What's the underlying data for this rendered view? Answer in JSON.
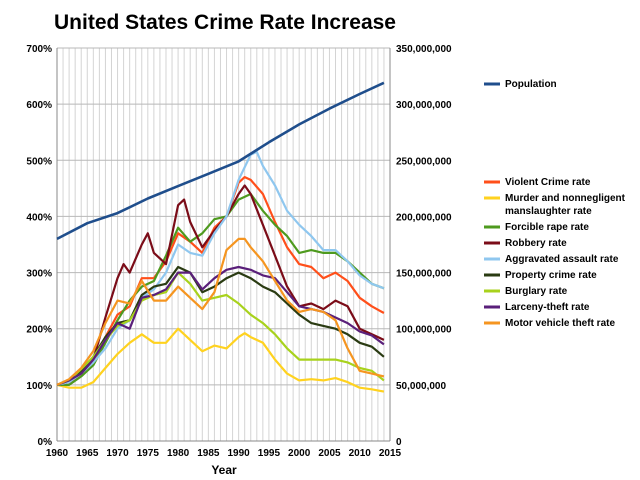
{
  "chart_data": {
    "type": "line",
    "title": "United States Crime Rate Increase",
    "xlabel": "Year",
    "ylabel_left": "",
    "ylabel_right": "",
    "xlim": [
      1960,
      2015
    ],
    "ylim_left": [
      0,
      700
    ],
    "ylim_right": [
      0,
      350000000
    ],
    "grid": true,
    "legend_position": "right",
    "x_ticks": [
      "1960",
      "1965",
      "1970",
      "1975",
      "1980",
      "1985",
      "1990",
      "1995",
      "2000",
      "2005",
      "2010",
      "2015"
    ],
    "y_left_ticks": [
      "0%",
      "100%",
      "200%",
      "300%",
      "400%",
      "500%",
      "600%",
      "700%"
    ],
    "y_right_ticks": [
      "0",
      "50,000,000",
      "100,000,000",
      "150,000,000",
      "200,000,000",
      "250,000,000",
      "300,000,000",
      "350,000,000"
    ],
    "population": {
      "name": "Population",
      "color": "#1f4e8c",
      "axis": "right",
      "x": [
        1960,
        1965,
        1970,
        1975,
        1980,
        1985,
        1990,
        1995,
        2000,
        2005,
        2010,
        2014
      ],
      "values": [
        180000000,
        194000000,
        203000000,
        216000000,
        227000000,
        238000000,
        249000000,
        266000000,
        282000000,
        296000000,
        309000000,
        319000000
      ]
    },
    "series": [
      {
        "name": "Violent Crime rate",
        "color": "#ff4f1a",
        "x": [
          1960,
          1962,
          1964,
          1966,
          1968,
          1970,
          1972,
          1974,
          1976,
          1978,
          1980,
          1982,
          1984,
          1986,
          1988,
          1990,
          1991,
          1992,
          1994,
          1996,
          1998,
          2000,
          2002,
          2004,
          2006,
          2008,
          2010,
          2012,
          2014
        ],
        "values": [
          100,
          105,
          118,
          140,
          185,
          225,
          240,
          290,
          290,
          320,
          370,
          355,
          335,
          380,
          400,
          460,
          470,
          465,
          440,
          390,
          345,
          315,
          310,
          290,
          300,
          285,
          255,
          240,
          228
        ]
      },
      {
        "name": "Murder and nonnegligent manslaughter rate",
        "color": "#ffd21f",
        "x": [
          1960,
          1962,
          1964,
          1966,
          1968,
          1970,
          1972,
          1974,
          1976,
          1978,
          1980,
          1982,
          1984,
          1986,
          1988,
          1990,
          1991,
          1992,
          1994,
          1996,
          1998,
          2000,
          2002,
          2004,
          2006,
          2008,
          2010,
          2012,
          2014
        ],
        "values": [
          100,
          95,
          95,
          105,
          130,
          155,
          175,
          190,
          175,
          175,
          200,
          180,
          160,
          170,
          165,
          185,
          192,
          185,
          175,
          145,
          120,
          108,
          110,
          108,
          112,
          105,
          95,
          92,
          88
        ]
      },
      {
        "name": "Forcible rape rate",
        "color": "#4e9a1e",
        "x": [
          1960,
          1962,
          1964,
          1966,
          1968,
          1970,
          1972,
          1974,
          1976,
          1978,
          1980,
          1982,
          1984,
          1986,
          1988,
          1990,
          1992,
          1994,
          1996,
          1998,
          2000,
          2002,
          2004,
          2006,
          2008,
          2010,
          2012,
          2014
        ],
        "values": [
          100,
          100,
          115,
          135,
          175,
          215,
          250,
          275,
          285,
          330,
          380,
          355,
          370,
          395,
          400,
          430,
          440,
          410,
          385,
          365,
          335,
          340,
          335,
          335,
          320,
          300,
          280,
          272
        ]
      },
      {
        "name": "Robbery rate",
        "color": "#7b0c18",
        "x": [
          1960,
          1962,
          1964,
          1966,
          1968,
          1970,
          1971,
          1972,
          1974,
          1975,
          1976,
          1978,
          1980,
          1981,
          1982,
          1984,
          1986,
          1988,
          1990,
          1991,
          1992,
          1994,
          1996,
          1998,
          2000,
          2002,
          2004,
          2006,
          2008,
          2010,
          2012,
          2014
        ],
        "values": [
          100,
          105,
          120,
          145,
          220,
          290,
          315,
          300,
          350,
          370,
          335,
          315,
          420,
          430,
          390,
          345,
          375,
          400,
          440,
          455,
          440,
          385,
          330,
          275,
          240,
          245,
          235,
          250,
          240,
          200,
          190,
          180
        ]
      },
      {
        "name": "Aggravated assault rate",
        "color": "#8fc7ef",
        "x": [
          1960,
          1962,
          1964,
          1966,
          1968,
          1970,
          1972,
          1974,
          1976,
          1978,
          1980,
          1982,
          1984,
          1986,
          1988,
          1990,
          1992,
          1993,
          1994,
          1996,
          1998,
          2000,
          2002,
          2004,
          2006,
          2008,
          2010,
          2012,
          2014
        ],
        "values": [
          100,
          105,
          120,
          140,
          165,
          200,
          215,
          255,
          270,
          300,
          350,
          335,
          330,
          370,
          400,
          465,
          510,
          515,
          490,
          455,
          410,
          385,
          365,
          340,
          340,
          320,
          295,
          280,
          272
        ]
      },
      {
        "name": "Property crime rate",
        "color": "#2a3b12",
        "x": [
          1960,
          1962,
          1964,
          1966,
          1968,
          1970,
          1972,
          1974,
          1976,
          1978,
          1980,
          1982,
          1984,
          1986,
          1988,
          1990,
          1992,
          1994,
          1996,
          1998,
          2000,
          2002,
          2004,
          2006,
          2008,
          2010,
          2012,
          2014
        ],
        "values": [
          100,
          108,
          125,
          150,
          185,
          210,
          215,
          260,
          275,
          280,
          310,
          300,
          265,
          275,
          290,
          300,
          290,
          275,
          265,
          245,
          225,
          210,
          205,
          200,
          190,
          175,
          168,
          150
        ]
      },
      {
        "name": "Burglary rate",
        "color": "#a8d21c",
        "x": [
          1960,
          1962,
          1964,
          1966,
          1968,
          1970,
          1972,
          1974,
          1976,
          1978,
          1980,
          1982,
          1984,
          1986,
          1988,
          1990,
          1992,
          1994,
          1996,
          1998,
          2000,
          2002,
          2004,
          2006,
          2008,
          2010,
          2012,
          2014
        ],
        "values": [
          100,
          108,
          128,
          150,
          180,
          205,
          215,
          250,
          260,
          265,
          300,
          280,
          250,
          255,
          260,
          245,
          225,
          210,
          190,
          165,
          145,
          145,
          145,
          145,
          140,
          130,
          125,
          108
        ]
      },
      {
        "name": "Larceny-theft rate",
        "color": "#5a1f7a",
        "x": [
          1960,
          1962,
          1964,
          1966,
          1968,
          1970,
          1972,
          1974,
          1976,
          1978,
          1980,
          1982,
          1984,
          1986,
          1988,
          1990,
          1992,
          1994,
          1996,
          1998,
          2000,
          2002,
          2004,
          2006,
          2008,
          2010,
          2012,
          2014
        ],
        "values": [
          100,
          108,
          120,
          145,
          180,
          210,
          200,
          255,
          260,
          270,
          300,
          300,
          270,
          290,
          305,
          310,
          305,
          295,
          290,
          265,
          240,
          235,
          230,
          220,
          210,
          195,
          188,
          172
        ]
      },
      {
        "name": "Motor vehicle theft rate",
        "color": "#f59520",
        "x": [
          1960,
          1962,
          1964,
          1966,
          1968,
          1970,
          1972,
          1974,
          1976,
          1978,
          1980,
          1982,
          1984,
          1986,
          1988,
          1990,
          1991,
          1992,
          1994,
          1996,
          1998,
          2000,
          2002,
          2004,
          2006,
          2008,
          2010,
          2012,
          2014
        ],
        "values": [
          100,
          110,
          130,
          160,
          210,
          250,
          245,
          285,
          250,
          250,
          275,
          255,
          235,
          265,
          340,
          360,
          360,
          345,
          320,
          285,
          250,
          230,
          235,
          230,
          215,
          165,
          125,
          120,
          115
        ]
      }
    ]
  }
}
